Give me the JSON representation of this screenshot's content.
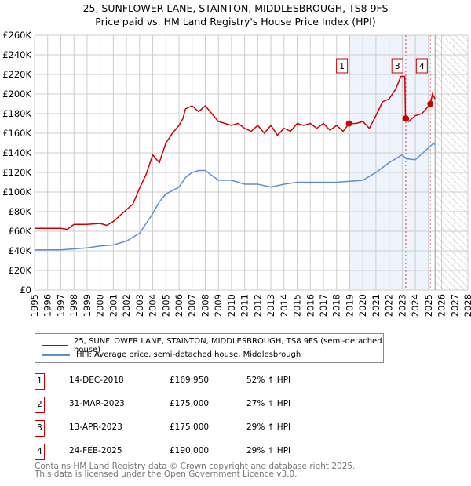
{
  "chart_data": {
    "type": "line",
    "title": "25, SUNFLOWER LANE, STAINTON, MIDDLESBROUGH, TS8 9FS",
    "subtitle": "Price paid vs. HM Land Registry's House Price Index (HPI)",
    "xlim": [
      1995,
      2028
    ],
    "ylim": [
      0,
      260000
    ],
    "x_ticks": [
      "1995",
      "1996",
      "1997",
      "1998",
      "1999",
      "2000",
      "2001",
      "2002",
      "2003",
      "2004",
      "2005",
      "2006",
      "2007",
      "2008",
      "2009",
      "2010",
      "2011",
      "2012",
      "2013",
      "2014",
      "2015",
      "2016",
      "2017",
      "2018",
      "2019",
      "2020",
      "2021",
      "2022",
      "2023",
      "2024",
      "2025",
      "2026",
      "2027",
      "2028"
    ],
    "y_ticks": [
      "£0",
      "£20K",
      "£40K",
      "£60K",
      "£80K",
      "£100K",
      "£120K",
      "£140K",
      "£160K",
      "£180K",
      "£200K",
      "£220K",
      "£240K",
      "£260K"
    ],
    "grid": true,
    "shaded_range": [
      2018.95,
      2025.15
    ],
    "forecast_hatch_from": 2025.5,
    "series": [
      {
        "name": "25, SUNFLOWER LANE, STAINTON, MIDDLESBROUGH, TS8 9FS (semi-detached house)",
        "color": "#cc0000",
        "points": [
          [
            1995,
            63
          ],
          [
            1996,
            63
          ],
          [
            1997,
            63
          ],
          [
            1997.5,
            62
          ],
          [
            1998,
            67
          ],
          [
            1999,
            67
          ],
          [
            2000,
            68
          ],
          [
            2000.5,
            66
          ],
          [
            2001,
            70
          ],
          [
            2001.5,
            76
          ],
          [
            2002,
            82
          ],
          [
            2002.5,
            88
          ],
          [
            2003,
            104
          ],
          [
            2003.5,
            118
          ],
          [
            2004,
            138
          ],
          [
            2004.5,
            130
          ],
          [
            2005,
            150
          ],
          [
            2005.5,
            160
          ],
          [
            2006,
            168
          ],
          [
            2006.3,
            175
          ],
          [
            2006.5,
            185
          ],
          [
            2007,
            188
          ],
          [
            2007.5,
            182
          ],
          [
            2008,
            188
          ],
          [
            2008.5,
            180
          ],
          [
            2009,
            172
          ],
          [
            2009.5,
            170
          ],
          [
            2010,
            168
          ],
          [
            2010.5,
            170
          ],
          [
            2011,
            165
          ],
          [
            2011.5,
            162
          ],
          [
            2012,
            168
          ],
          [
            2012.5,
            160
          ],
          [
            2013,
            168
          ],
          [
            2013.5,
            158
          ],
          [
            2014,
            165
          ],
          [
            2014.5,
            162
          ],
          [
            2015,
            170
          ],
          [
            2015.5,
            168
          ],
          [
            2016,
            170
          ],
          [
            2016.5,
            165
          ],
          [
            2017,
            170
          ],
          [
            2017.5,
            163
          ],
          [
            2018,
            168
          ],
          [
            2018.5,
            162
          ],
          [
            2018.95,
            169.95
          ],
          [
            2019.5,
            170
          ],
          [
            2020,
            172
          ],
          [
            2020.5,
            165
          ],
          [
            2021,
            178
          ],
          [
            2021.5,
            192
          ],
          [
            2022,
            195
          ],
          [
            2022.5,
            205
          ],
          [
            2022.9,
            218
          ],
          [
            2023.2,
            218
          ],
          [
            2023.25,
            175
          ],
          [
            2023.5,
            172
          ],
          [
            2024,
            178
          ],
          [
            2024.5,
            180
          ],
          [
            2025.15,
            190
          ],
          [
            2025.3,
            200
          ],
          [
            2025.5,
            195
          ]
        ]
      },
      {
        "name": "HPI: Average price, semi-detached house, Middlesbrough",
        "color": "#5b8fd0",
        "points": [
          [
            1995,
            41
          ],
          [
            1997,
            41
          ],
          [
            1998,
            42
          ],
          [
            1999,
            43
          ],
          [
            2000,
            45
          ],
          [
            2001,
            46
          ],
          [
            2002,
            50
          ],
          [
            2003,
            58
          ],
          [
            2004,
            78
          ],
          [
            2004.5,
            90
          ],
          [
            2005,
            98
          ],
          [
            2006,
            105
          ],
          [
            2006.5,
            115
          ],
          [
            2007,
            120
          ],
          [
            2007.5,
            122
          ],
          [
            2008,
            122
          ],
          [
            2009,
            112
          ],
          [
            2010,
            112
          ],
          [
            2011,
            108
          ],
          [
            2012,
            108
          ],
          [
            2013,
            105
          ],
          [
            2014,
            108
          ],
          [
            2015,
            110
          ],
          [
            2016,
            110
          ],
          [
            2017,
            110
          ],
          [
            2018,
            110
          ],
          [
            2019,
            111
          ],
          [
            2020,
            112
          ],
          [
            2021,
            120
          ],
          [
            2022,
            130
          ],
          [
            2023,
            138
          ],
          [
            2023.3,
            134
          ],
          [
            2024,
            133
          ],
          [
            2025,
            145
          ],
          [
            2025.4,
            150
          ],
          [
            2025.5,
            148
          ]
        ]
      }
    ],
    "sales": [
      {
        "label": "1",
        "x": 2018.95,
        "price": 169950,
        "date": "14-DEC-2018",
        "price_text": "£169,950",
        "hpi": "52% ↑ HPI",
        "show_box": true
      },
      {
        "label": "2",
        "x": 2023.25,
        "price": 175000,
        "date": "31-MAR-2023",
        "price_text": "£175,000",
        "hpi": "27% ↑ HPI",
        "show_box": false
      },
      {
        "label": "3",
        "x": 2023.29,
        "price": 175000,
        "date": "13-APR-2023",
        "price_text": "£175,000",
        "hpi": "29% ↑ HPI",
        "show_box": true
      },
      {
        "label": "4",
        "x": 2025.15,
        "price": 190000,
        "date": "24-FEB-2025",
        "price_text": "£190,000",
        "hpi": "29% ↑ HPI",
        "show_box": true
      }
    ]
  },
  "footer": {
    "line1": "Contains HM Land Registry data © Crown copyright and database right 2025.",
    "line2": "This data is licensed under the Open Government Licence v3.0."
  }
}
